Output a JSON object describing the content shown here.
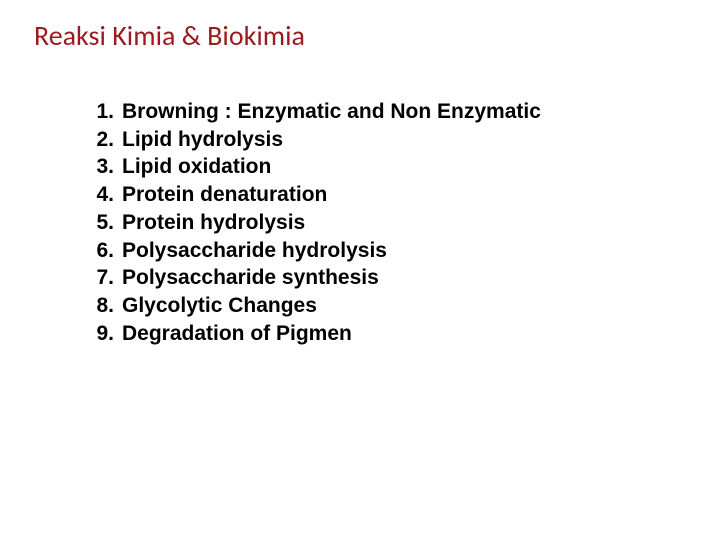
{
  "title": "Reaksi Kimia & Biokimia",
  "title_color": "#9a1b1e",
  "list_color": "#000000",
  "list_font_weight": 700,
  "items": [
    {
      "n": "1.",
      "t": "Browning : Enzymatic and Non Enzymatic"
    },
    {
      "n": "2.",
      "t": "Lipid hydrolysis"
    },
    {
      "n": "3.",
      "t": "Lipid oxidation"
    },
    {
      "n": "4.",
      "t": "Protein denaturation"
    },
    {
      "n": "5.",
      "t": "Protein hydrolysis"
    },
    {
      "n": "6.",
      "t": "Polysaccharide hydrolysis"
    },
    {
      "n": "7.",
      "t": "Polysaccharide synthesis"
    },
    {
      "n": "8.",
      "t": "Glycolytic Changes"
    },
    {
      "n": "9.",
      "t": "Degradation of Pigmen"
    }
  ]
}
